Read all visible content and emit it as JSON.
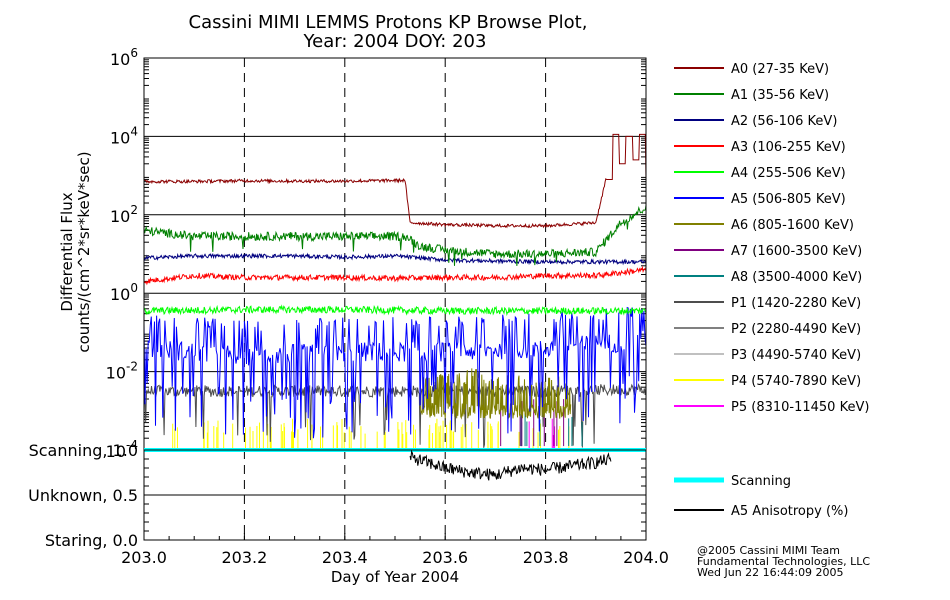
{
  "chart_data": {
    "type": "line",
    "title_line1": "Cassini MIMI LEMMS Protons KP Browse Plot,",
    "title_line2": "Year: 2004 DOY: 203",
    "xlabel": "Day of Year 2004",
    "ylabel_line1": "Differential Flux",
    "ylabel_line2": "counts/(cm^2*sr*keV*sec)",
    "xlim": [
      203.0,
      204.0
    ],
    "x_ticks": [
      "203.0",
      "203.2",
      "203.4",
      "203.6",
      "203.8",
      "204.0"
    ],
    "ylim_log10": [
      -4,
      6
    ],
    "y_ticks": [
      {
        "base": "10",
        "exp": "6"
      },
      {
        "base": "10",
        "exp": "4"
      },
      {
        "base": "10",
        "exp": "2"
      },
      {
        "base": "10",
        "exp": "0"
      },
      {
        "base": "10",
        "exp": "-2"
      },
      {
        "base": "10",
        "exp": "-4"
      }
    ],
    "series": [
      {
        "name": "A0 (27-35 KeV)",
        "color": "#8b0000",
        "x": [
          203.0,
          203.1,
          203.2,
          203.3,
          203.4,
          203.52,
          203.53,
          203.6,
          203.7,
          203.8,
          203.9,
          203.92,
          203.95,
          203.97,
          204.0
        ],
        "log_flux": [
          2.85,
          2.85,
          2.87,
          2.86,
          2.86,
          2.88,
          1.8,
          1.75,
          1.72,
          1.72,
          1.8,
          2.9,
          4.0,
          3.3,
          4.05
        ]
      },
      {
        "name": "A1 (35-56 KeV)",
        "color": "#008000",
        "x": [
          203.0,
          203.1,
          203.2,
          203.3,
          203.4,
          203.52,
          203.55,
          203.6,
          203.7,
          203.8,
          203.9,
          203.95,
          204.0
        ],
        "log_flux": [
          1.6,
          1.45,
          1.45,
          1.45,
          1.45,
          1.45,
          1.2,
          1.1,
          1.0,
          1.0,
          1.05,
          1.8,
          2.2
        ]
      },
      {
        "name": "A2 (56-106 KeV)",
        "color": "#000080",
        "x": [
          203.0,
          203.1,
          203.2,
          203.3,
          203.4,
          203.5,
          203.6,
          203.7,
          203.8,
          203.9,
          204.0
        ],
        "log_flux": [
          0.9,
          0.95,
          0.95,
          0.95,
          0.92,
          0.95,
          0.85,
          0.82,
          0.8,
          0.8,
          0.8
        ]
      },
      {
        "name": "A3 (106-255 KeV)",
        "color": "#ff0000",
        "x": [
          203.0,
          203.1,
          203.2,
          203.3,
          203.4,
          203.5,
          203.6,
          203.7,
          203.8,
          203.9,
          204.0
        ],
        "log_flux": [
          0.3,
          0.45,
          0.4,
          0.4,
          0.4,
          0.38,
          0.4,
          0.4,
          0.45,
          0.45,
          0.6
        ]
      },
      {
        "name": "A4 (255-506 KeV)",
        "color": "#00ff00",
        "x": [
          203.0,
          203.2,
          203.4,
          203.6,
          203.8,
          204.0
        ],
        "log_flux": [
          -0.45,
          -0.42,
          -0.42,
          -0.45,
          -0.45,
          -0.45
        ]
      },
      {
        "name": "A5 (506-805 KeV)",
        "color": "#0000ff",
        "x": [
          203.0,
          203.2,
          203.4,
          203.6,
          203.8,
          204.0
        ],
        "log_flux": [
          -1.4,
          -1.6,
          -1.5,
          -1.5,
          -1.4,
          -1.2
        ]
      },
      {
        "name": "A6 (805-1600 KeV)",
        "color": "#808000",
        "x": [
          203.55,
          203.65,
          203.75,
          203.85
        ],
        "log_flux": [
          -2.3,
          -2.1,
          -2.3,
          -2.3
        ]
      },
      {
        "name": "A7 (1600-3500 KeV)",
        "color": "#800080",
        "x": [
          203.7,
          203.85
        ],
        "log_flux": [
          -3.0,
          -3.2
        ]
      },
      {
        "name": "A8 (3500-4000 KeV)",
        "color": "#008080",
        "x": [
          203.7,
          203.9
        ],
        "log_flux": [
          -3.3,
          -3.3
        ]
      },
      {
        "name": "P1 (1420-2280 KeV)",
        "color": "#4d4d4d",
        "x": [
          203.0,
          203.2,
          203.4,
          203.6,
          203.8,
          204.0
        ],
        "log_flux": [
          -2.5,
          -2.5,
          -2.5,
          -2.5,
          -2.5,
          -2.45
        ]
      },
      {
        "name": "P2 (2280-4490 KeV)",
        "color": "#808080",
        "x": [
          203.0,
          203.5,
          204.0
        ],
        "log_flux": [
          -2.9,
          -2.9,
          -2.9
        ]
      },
      {
        "name": "P3 (4490-5740 KeV)",
        "color": "#c0c0c0",
        "x": [
          203.0,
          203.5,
          204.0
        ],
        "log_flux": [
          -3.5,
          -3.5,
          -3.5
        ]
      },
      {
        "name": "P4 (5740-7890 KeV)",
        "color": "#ffff00",
        "x": [
          203.1,
          203.3,
          203.6,
          203.8
        ],
        "log_flux": [
          -3.7,
          -3.7,
          -3.6,
          -3.7
        ]
      },
      {
        "name": "P5 (8310-11450 KeV)",
        "color": "#ff00ff",
        "x": [
          203.8
        ],
        "log_flux": [
          -3.8
        ]
      }
    ],
    "lower_panel": {
      "y_tick_labels": [
        "Scanning, 1.0",
        "Unknown, 0.5",
        "Staring, 0.0"
      ],
      "y_values": [
        1.0,
        0.5,
        0.0
      ],
      "series": [
        {
          "name": "Scanning",
          "color": "#00ffff",
          "x": [
            203.0,
            204.0
          ],
          "y": [
            1.0,
            1.0
          ]
        },
        {
          "name": "A5 Anisotropy (%)",
          "color": "#000000",
          "x": [
            203.53,
            203.6,
            203.65,
            203.7,
            203.75,
            203.8,
            203.85,
            203.9,
            203.93
          ],
          "y": [
            0.92,
            0.8,
            0.75,
            0.72,
            0.8,
            0.78,
            0.82,
            0.86,
            0.9
          ]
        }
      ]
    }
  },
  "credits": {
    "line1": "@2005 Cassini MIMI Team",
    "line2": "Fundamental Technologies, LLC",
    "line3": "Wed Jun 22 16:44:09 2005"
  }
}
